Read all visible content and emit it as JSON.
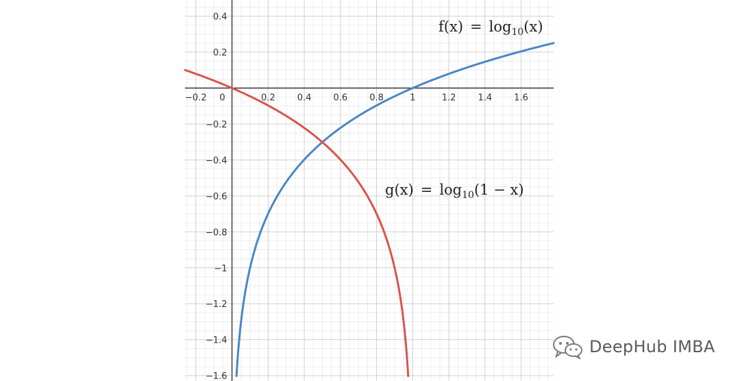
{
  "chart_data": {
    "type": "line",
    "title": "",
    "xlabel": "",
    "ylabel": "",
    "xlim": [
      -0.26,
      1.78
    ],
    "ylim": [
      -1.63,
      0.49
    ],
    "grid": true,
    "x_ticks": [
      "-0.2",
      "0",
      "0.2",
      "0.4",
      "0.6",
      "0.8",
      "1",
      "1.2",
      "1.4",
      "1.6"
    ],
    "y_ticks": [
      "0.4",
      "0.2",
      "-0.2",
      "-0.4",
      "-0.6",
      "-0.8",
      "-1",
      "-1.2",
      "-1.4",
      "-1.6"
    ],
    "series": [
      {
        "name": "f(x) = log10(x)",
        "color": "#4a86c8",
        "points": [
          [
            0.025,
            -1.602
          ],
          [
            0.03,
            -1.523
          ],
          [
            0.04,
            -1.398
          ],
          [
            0.05,
            -1.301
          ],
          [
            0.07,
            -1.155
          ],
          [
            0.1,
            -1.0
          ],
          [
            0.15,
            -0.824
          ],
          [
            0.2,
            -0.699
          ],
          [
            0.3,
            -0.523
          ],
          [
            0.4,
            -0.398
          ],
          [
            0.5,
            -0.301
          ],
          [
            0.6,
            -0.222
          ],
          [
            0.7,
            -0.155
          ],
          [
            0.8,
            -0.097
          ],
          [
            0.9,
            -0.046
          ],
          [
            1.0,
            0.0
          ],
          [
            1.1,
            0.041
          ],
          [
            1.2,
            0.079
          ],
          [
            1.3,
            0.114
          ],
          [
            1.4,
            0.146
          ],
          [
            1.5,
            0.176
          ],
          [
            1.6,
            0.204
          ],
          [
            1.7,
            0.23
          ],
          [
            1.78,
            0.25
          ]
        ]
      },
      {
        "name": "g(x) = log10(1 − x)",
        "color": "#d9534f",
        "points": [
          [
            -0.26,
            0.1
          ],
          [
            -0.2,
            0.079
          ],
          [
            -0.1,
            0.041
          ],
          [
            0.0,
            0.0
          ],
          [
            0.1,
            -0.046
          ],
          [
            0.2,
            -0.097
          ],
          [
            0.3,
            -0.155
          ],
          [
            0.4,
            -0.222
          ],
          [
            0.5,
            -0.301
          ],
          [
            0.6,
            -0.398
          ],
          [
            0.7,
            -0.523
          ],
          [
            0.8,
            -0.699
          ],
          [
            0.85,
            -0.824
          ],
          [
            0.9,
            -1.0
          ],
          [
            0.93,
            -1.155
          ],
          [
            0.95,
            -1.301
          ],
          [
            0.96,
            -1.398
          ],
          [
            0.97,
            -1.523
          ],
          [
            0.975,
            -1.602
          ]
        ]
      }
    ],
    "annotations": {
      "f_label": {
        "name": "f",
        "arg": "x",
        "fn": "log",
        "sub": "10",
        "inner": "x"
      },
      "g_label": {
        "name": "g",
        "arg": "x",
        "fn": "log",
        "sub": "10",
        "inner": "1 − x"
      }
    }
  },
  "watermark": {
    "text": "DeepHub IMBA",
    "icon": "wechat-icon"
  }
}
